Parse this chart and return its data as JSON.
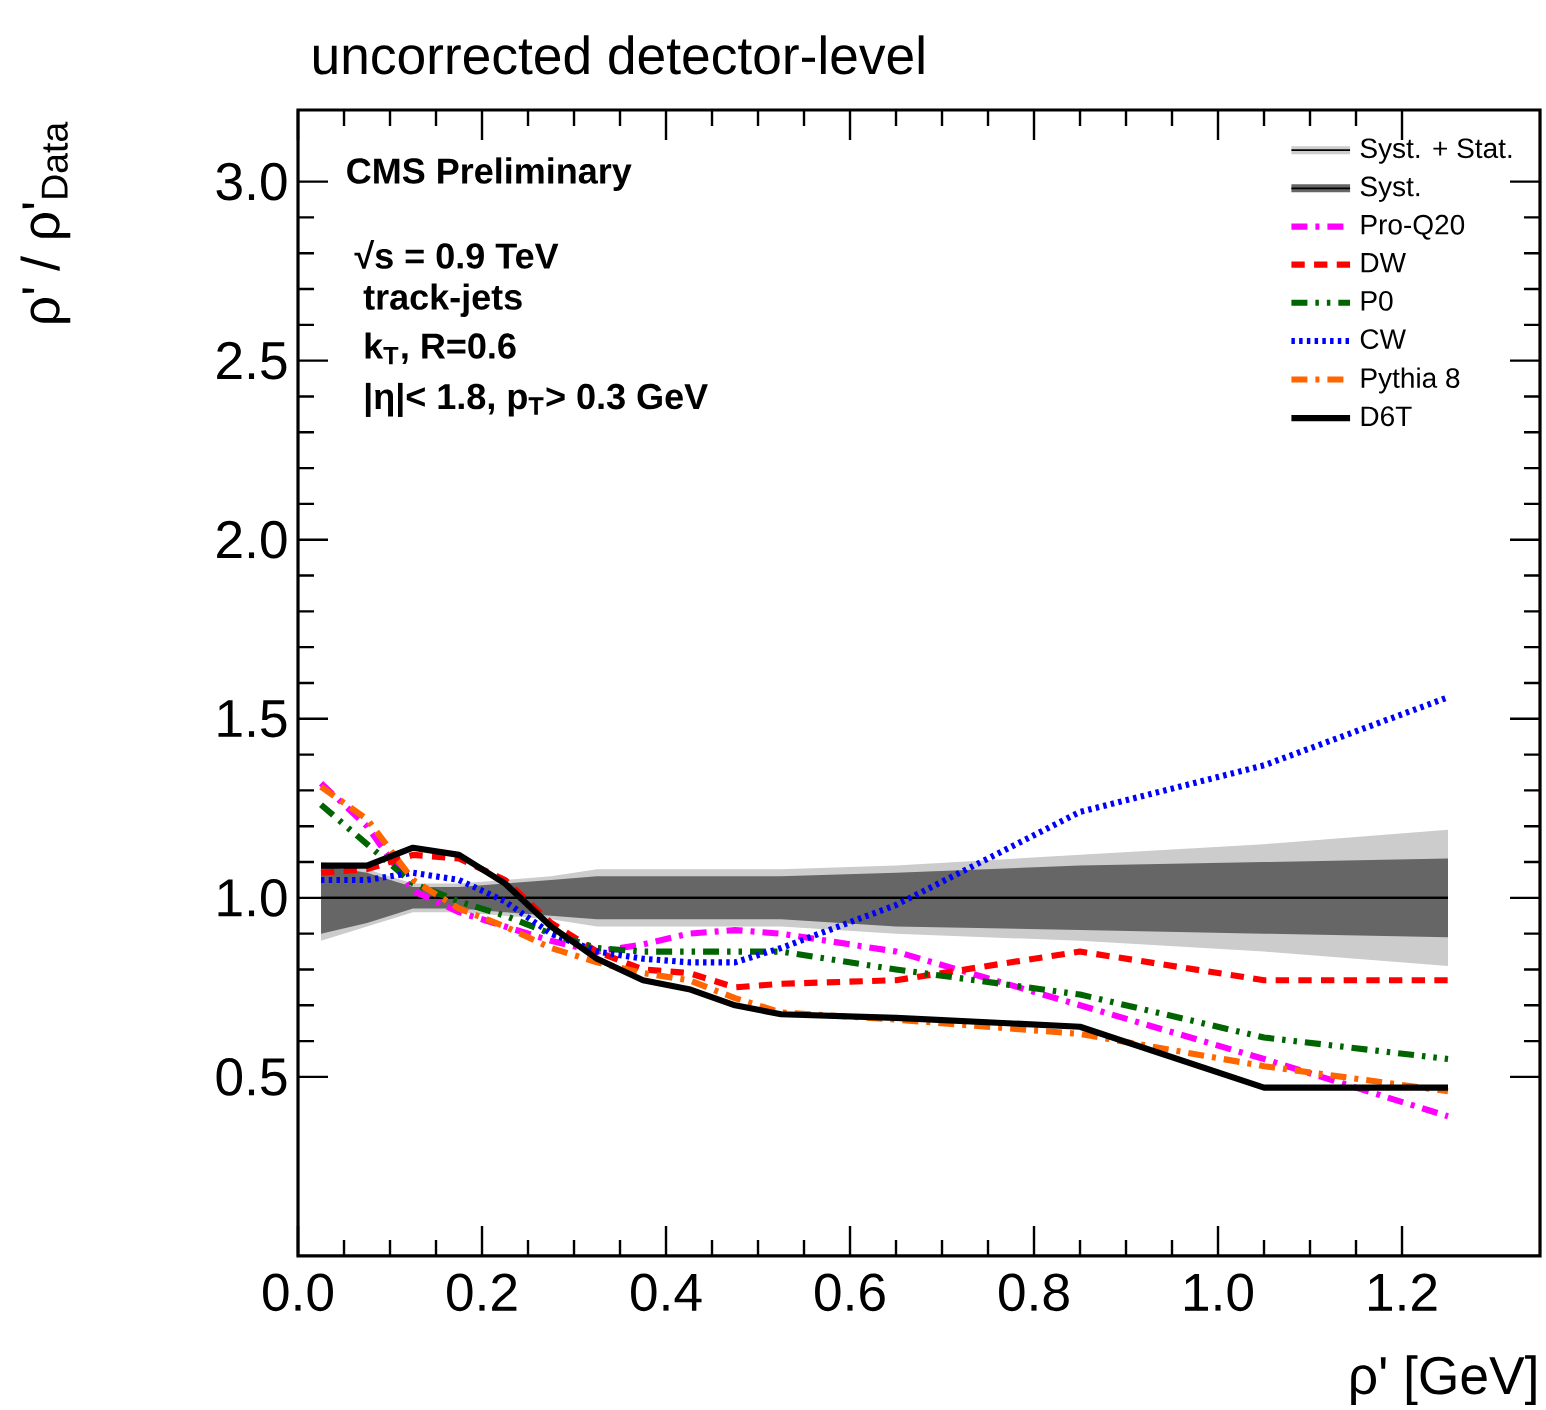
{
  "chart_data": {
    "type": "line",
    "title": "uncorrected detector-level",
    "xlabel": "ρ' [GeV]",
    "ylabel": "ρ' / ρ'$_{Data}$",
    "x": [
      0.025,
      0.075,
      0.125,
      0.175,
      0.225,
      0.275,
      0.325,
      0.375,
      0.425,
      0.475,
      0.525,
      0.65,
      0.85,
      1.05,
      1.25
    ],
    "xlim": [
      0,
      1.35
    ],
    "ylim": [
      0,
      3.2
    ],
    "xticks": [
      {
        "value": 0,
        "label": "0.0"
      },
      {
        "value": 0.2,
        "label": "0.2"
      },
      {
        "value": 0.4,
        "label": "0.4"
      },
      {
        "value": 0.6,
        "label": "0.6"
      },
      {
        "value": 0.8,
        "label": "0.8"
      },
      {
        "value": 1.0,
        "label": "1.0"
      },
      {
        "value": 1.2,
        "label": "1.2"
      }
    ],
    "yticks": [
      {
        "value": 0.5,
        "label": "0.5"
      },
      {
        "value": 1.0,
        "label": "1.0"
      },
      {
        "value": 1.5,
        "label": "1.5"
      },
      {
        "value": 2.0,
        "label": "2.0"
      },
      {
        "value": 2.5,
        "label": "2.5"
      },
      {
        "value": 3.0,
        "label": "3.0"
      }
    ],
    "legend": "top right",
    "series": [
      {
        "name": "Syst. + Stat.",
        "type": "line",
        "color": "#000000",
        "values": [
          1,
          1,
          1,
          1,
          1,
          1,
          1,
          1,
          1,
          1,
          1,
          1,
          1,
          1,
          1
        ],
        "lower": [
          0.88,
          0.92,
          0.96,
          0.96,
          0.95,
          0.94,
          0.92,
          0.92,
          0.92,
          0.92,
          0.92,
          0.9,
          0.88,
          0.85,
          0.81
        ],
        "upper": [
          1.1,
          1.08,
          1.04,
          1.04,
          1.05,
          1.06,
          1.08,
          1.08,
          1.08,
          1.08,
          1.08,
          1.09,
          1.12,
          1.15,
          1.19
        ]
      },
      {
        "name": "Syst.",
        "type": "line",
        "color": "#000000",
        "values": [
          1,
          1,
          1,
          1,
          1,
          1,
          1,
          1,
          1,
          1,
          1,
          1,
          1,
          1,
          1
        ],
        "lower": [
          0.9,
          0.93,
          0.97,
          0.97,
          0.96,
          0.95,
          0.94,
          0.94,
          0.94,
          0.94,
          0.94,
          0.92,
          0.91,
          0.9,
          0.89
        ],
        "upper": [
          1.09,
          1.07,
          1.03,
          1.03,
          1.04,
          1.05,
          1.06,
          1.06,
          1.06,
          1.06,
          1.06,
          1.07,
          1.09,
          1.1,
          1.11
        ]
      },
      {
        "name": "Pro-Q20",
        "color": "#ff00ff",
        "line_style": "dashdot",
        "values": [
          1.32,
          1.2,
          1.02,
          0.96,
          0.92,
          0.88,
          0.85,
          0.87,
          0.9,
          0.91,
          0.9,
          0.85,
          0.7,
          0.55,
          0.39
        ]
      },
      {
        "name": "DW",
        "color": "#ff0000",
        "line_style": "dashed",
        "values": [
          1.07,
          1.08,
          1.12,
          1.11,
          1.05,
          0.93,
          0.85,
          0.8,
          0.79,
          0.75,
          0.76,
          0.77,
          0.85,
          0.77,
          0.77
        ]
      },
      {
        "name": "P0",
        "color": "#006400",
        "line_style": "dashdotdotted",
        "values": [
          1.26,
          1.15,
          1.04,
          0.99,
          0.95,
          0.9,
          0.86,
          0.85,
          0.85,
          0.85,
          0.85,
          0.8,
          0.73,
          0.61,
          0.55
        ]
      },
      {
        "name": "CW",
        "color": "#0000ff",
        "line_style": "dotted",
        "values": [
          1.05,
          1.05,
          1.07,
          1.05,
          0.99,
          0.9,
          0.85,
          0.83,
          0.82,
          0.82,
          0.86,
          0.98,
          1.24,
          1.37,
          1.56
        ]
      },
      {
        "name": "Pythia 8",
        "color": "#ff6600",
        "line_style": "dashdot",
        "values": [
          1.31,
          1.22,
          1.05,
          0.97,
          0.92,
          0.86,
          0.82,
          0.79,
          0.77,
          0.72,
          0.68,
          0.66,
          0.62,
          0.53,
          0.46
        ]
      },
      {
        "name": "D6T",
        "color": "#000000",
        "line_style": "solid",
        "values": [
          1.09,
          1.09,
          1.14,
          1.12,
          1.04,
          0.92,
          0.83,
          0.77,
          0.745,
          0.7,
          0.675,
          0.665,
          0.64,
          0.47,
          0.47
        ]
      }
    ],
    "annotations": [
      "CMS Preliminary",
      "√s = 0.9 TeV",
      "track-jets",
      "k$_{T}$, R=0.6",
      "|η|< 1.8, p$_{T}$> 0.3 GeV"
    ]
  }
}
